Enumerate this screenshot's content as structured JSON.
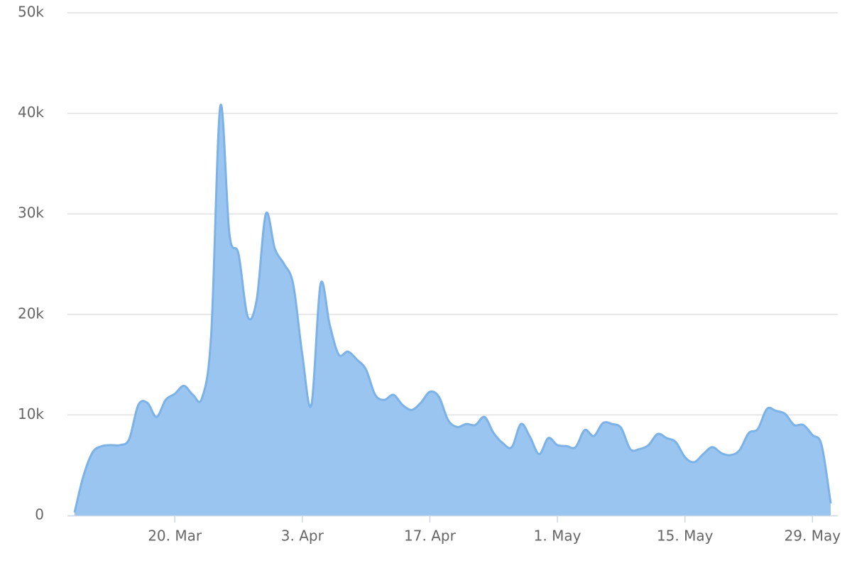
{
  "chart_data": {
    "type": "area",
    "x": [
      "03-09",
      "03-10",
      "03-11",
      "03-12",
      "03-13",
      "03-14",
      "03-15",
      "03-16",
      "03-17",
      "03-18",
      "03-19",
      "03-20",
      "03-21",
      "03-22",
      "03-23",
      "03-24",
      "03-25",
      "03-26",
      "03-27",
      "03-28",
      "03-29",
      "03-30",
      "03-31",
      "04-01",
      "04-02",
      "04-03",
      "04-04",
      "04-05",
      "04-06",
      "04-07",
      "04-08",
      "04-09",
      "04-10",
      "04-11",
      "04-12",
      "04-13",
      "04-14",
      "04-15",
      "04-16",
      "04-17",
      "04-18",
      "04-19",
      "04-20",
      "04-21",
      "04-22",
      "04-23",
      "04-24",
      "04-25",
      "04-26",
      "04-27",
      "04-28",
      "04-29",
      "04-30",
      "05-01",
      "05-02",
      "05-03",
      "05-04",
      "05-05",
      "05-06",
      "05-07",
      "05-08",
      "05-09",
      "05-10",
      "05-11",
      "05-12",
      "05-13",
      "05-14",
      "05-15",
      "05-16",
      "05-17",
      "05-18",
      "05-19",
      "05-20",
      "05-21",
      "05-22",
      "05-23",
      "05-24",
      "05-25",
      "05-26",
      "05-27",
      "05-28",
      "05-29",
      "05-30",
      "05-31"
    ],
    "values": [
      300,
      4000,
      6300,
      6900,
      7000,
      7000,
      7600,
      11000,
      11200,
      9800,
      11500,
      12100,
      12900,
      12000,
      11700,
      18000,
      40700,
      28000,
      26000,
      19800,
      21500,
      30000,
      26500,
      25000,
      23000,
      16000,
      11000,
      23000,
      19000,
      16000,
      16300,
      15500,
      14500,
      12000,
      11500,
      12000,
      11000,
      10500,
      11200,
      12300,
      11800,
      9500,
      8800,
      9100,
      9000,
      9800,
      8200,
      7200,
      6800,
      9100,
      7800,
      6100,
      7700,
      7000,
      6900,
      6800,
      8500,
      7900,
      9200,
      9100,
      8700,
      6600,
      6600,
      7000,
      8100,
      7700,
      7300,
      5800,
      5300,
      6100,
      6800,
      6200,
      6000,
      6500,
      8200,
      8600,
      10600,
      10400,
      10100,
      9000,
      9000,
      8000,
      7000,
      1200
    ],
    "color": "#9ac5f0",
    "line_color": "#7cb2e6",
    "xlim": [
      "03-09",
      "05-31"
    ],
    "xticks": [
      {
        "value": "03-20",
        "label": "20. Mar"
      },
      {
        "value": "04-03",
        "label": "3. Apr"
      },
      {
        "value": "04-17",
        "label": "17. Apr"
      },
      {
        "value": "05-01",
        "label": "1. May"
      },
      {
        "value": "05-15",
        "label": "15. May"
      },
      {
        "value": "05-29",
        "label": "29. May"
      }
    ],
    "ylim": [
      0,
      50000
    ],
    "yticks": [
      0,
      {
        "value": 10000,
        "label": "10k"
      },
      {
        "value": 20000,
        "label": "20k"
      },
      {
        "value": 30000,
        "label": "30k"
      },
      {
        "value": 40000,
        "label": "40k"
      },
      {
        "value": 50000,
        "label": "50k"
      }
    ],
    "grid": true
  }
}
